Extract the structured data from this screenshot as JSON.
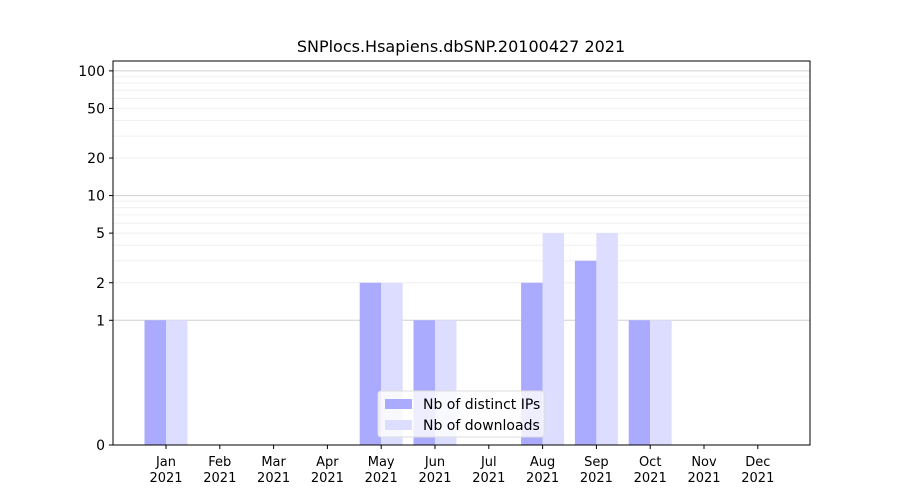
{
  "chart_data": {
    "type": "bar",
    "title": "SNPlocs.Hsapiens.dbSNP.20100427 2021",
    "xlabel": "",
    "ylabel": "",
    "y_scale": "symlog",
    "y_ticks": [
      0,
      1,
      2,
      5,
      10,
      20,
      50,
      100
    ],
    "ylim": [
      0,
      120
    ],
    "categories": [
      [
        "Jan",
        "2021"
      ],
      [
        "Feb",
        "2021"
      ],
      [
        "Mar",
        "2021"
      ],
      [
        "Apr",
        "2021"
      ],
      [
        "May",
        "2021"
      ],
      [
        "Jun",
        "2021"
      ],
      [
        "Jul",
        "2021"
      ],
      [
        "Aug",
        "2021"
      ],
      [
        "Sep",
        "2021"
      ],
      [
        "Oct",
        "2021"
      ],
      [
        "Nov",
        "2021"
      ],
      [
        "Dec",
        "2021"
      ]
    ],
    "series": [
      {
        "name": "Nb of distinct IPs",
        "color": "#aaaaff",
        "values": [
          1,
          0,
          0,
          0,
          2,
          1,
          0,
          2,
          3,
          1,
          0,
          0
        ]
      },
      {
        "name": "Nb of downloads",
        "color": "#ddddff",
        "values": [
          1,
          0,
          0,
          0,
          2,
          1,
          0,
          5,
          5,
          1,
          0,
          0
        ]
      }
    ],
    "legend": "lower-center",
    "grid": true
  }
}
